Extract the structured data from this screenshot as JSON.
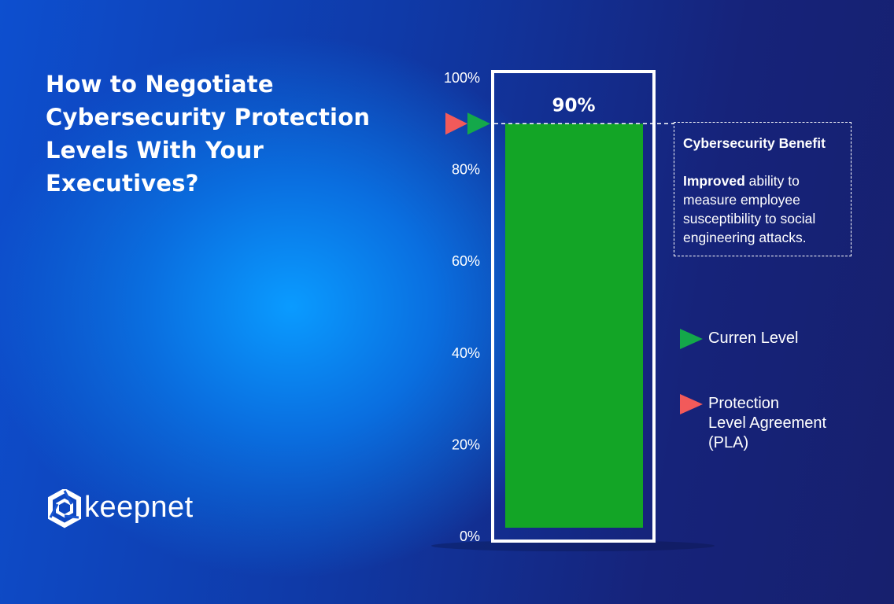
{
  "title": "How to Negotiate Cybersecurity Protection Levels With Your Executives?",
  "brand": {
    "name": "keepnet"
  },
  "chart_data": {
    "type": "bar",
    "categories": [
      ""
    ],
    "values": [
      90
    ],
    "value_label": "90%",
    "ylim": [
      0,
      100
    ],
    "yticks": [
      0,
      20,
      40,
      60,
      80,
      100
    ],
    "ytick_labels": [
      "0%",
      "20%",
      "40%",
      "60%",
      "80%",
      "100%"
    ],
    "current_level": 90,
    "pla_level": 90,
    "bar_color": "#13a526",
    "current_level_color": "#14a84a",
    "pla_color": "#f25a5a",
    "grid": false
  },
  "benefit": {
    "title": "Cybersecurity Benefit",
    "strong": "Improved",
    "text": " ability to measure employee susceptibility to social engineering attacks."
  },
  "legend": {
    "current": "Curren Level",
    "pla": "Protection\nLevel Agreement\n(PLA)"
  }
}
